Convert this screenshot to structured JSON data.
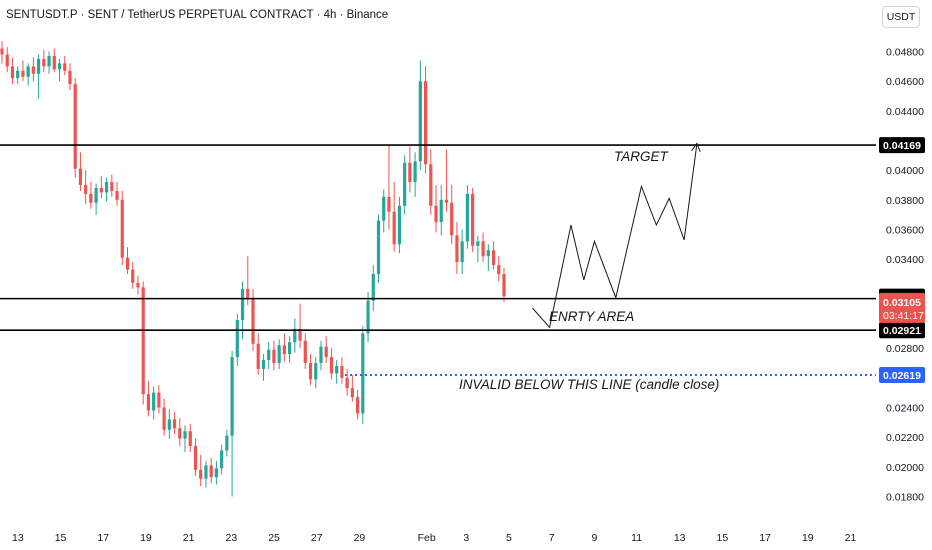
{
  "header": {
    "title": "SENTUSDT.P · SENT / TetherUS PERPETUAL CONTRACT · 4h · Binance",
    "currency_button": "USDT"
  },
  "colors": {
    "up": "#26a69a",
    "down": "#ef5350",
    "level_line": "#000000",
    "invalid_line": "#2962ff",
    "price_label_bg": "#ef5350",
    "invalid_label_bg": "#2962ff",
    "level_label_bg": "#000000"
  },
  "chart_data": {
    "type": "candlestick",
    "grid": false,
    "y_axis": {
      "position": "right",
      "range": [
        0.0172,
        0.0492
      ],
      "ticks": [
        "0.01800",
        "0.02000",
        "0.02200",
        "0.02400",
        "0.02800",
        "0.03400",
        "0.03600",
        "0.03800",
        "0.04000",
        "0.04400",
        "0.04600",
        "0.04800"
      ]
    },
    "x_axis": {
      "tick_labels": [
        "13",
        "15",
        "17",
        "19",
        "21",
        "23",
        "25",
        "27",
        "29",
        "Feb",
        "3",
        "5",
        "7",
        "9",
        "11",
        "13",
        "15",
        "17",
        "19",
        "21"
      ]
    },
    "horizontal_levels": [
      {
        "name": "target",
        "price": 0.04169,
        "label": "0.04169"
      },
      {
        "name": "entry-upper",
        "price": 0.03134,
        "label": "0.03134"
      },
      {
        "name": "entry-lower",
        "price": 0.02921,
        "label": "0.02921"
      },
      {
        "name": "invalid",
        "price": 0.02619,
        "label": "0.02619",
        "style": "dotted"
      }
    ],
    "current_price": {
      "price": 0.03105,
      "label": "0.03105",
      "countdown": "03:41:17"
    },
    "annotations": {
      "target": "TARGET",
      "entry": "ENRTY AREA",
      "invalid": "INVALID BELOW THIS LINE (candle close)"
    },
    "projected_path": [
      {
        "day": 5.1,
        "price": 0.0307
      },
      {
        "day": 5.9,
        "price": 0.0294
      },
      {
        "day": 6.9,
        "price": 0.0363
      },
      {
        "day": 7.5,
        "price": 0.0326
      },
      {
        "day": 8.0,
        "price": 0.0352
      },
      {
        "day": 9.0,
        "price": 0.0314
      },
      {
        "day": 10.2,
        "price": 0.0389
      },
      {
        "day": 10.9,
        "price": 0.0363
      },
      {
        "day": 11.5,
        "price": 0.0381
      },
      {
        "day": 12.2,
        "price": 0.0353
      },
      {
        "day": 12.8,
        "price": 0.0418
      }
    ],
    "candles_ohlc": [
      [
        0.0482,
        0.0487,
        0.0472,
        0.0478
      ],
      [
        0.0478,
        0.0483,
        0.0466,
        0.047
      ],
      [
        0.047,
        0.0476,
        0.0458,
        0.0462
      ],
      [
        0.0462,
        0.047,
        0.0458,
        0.0467
      ],
      [
        0.0467,
        0.0474,
        0.046,
        0.0463
      ],
      [
        0.0463,
        0.0472,
        0.0457,
        0.047
      ],
      [
        0.047,
        0.0476,
        0.046,
        0.0465
      ],
      [
        0.0465,
        0.0478,
        0.0448,
        0.0475
      ],
      [
        0.0475,
        0.0481,
        0.0466,
        0.047
      ],
      [
        0.047,
        0.048,
        0.0465,
        0.0477
      ],
      [
        0.0477,
        0.0482,
        0.0466,
        0.0468
      ],
      [
        0.0468,
        0.0475,
        0.046,
        0.0472
      ],
      [
        0.0472,
        0.0477,
        0.0464,
        0.0467
      ],
      [
        0.0467,
        0.0472,
        0.0454,
        0.0458
      ],
      [
        0.0458,
        0.0462,
        0.0395,
        0.0401
      ],
      [
        0.0401,
        0.0412,
        0.0386,
        0.039
      ],
      [
        0.039,
        0.04,
        0.0377,
        0.0384
      ],
      [
        0.0384,
        0.0392,
        0.0374,
        0.0378
      ],
      [
        0.0378,
        0.0391,
        0.037,
        0.0388
      ],
      [
        0.0388,
        0.0396,
        0.0381,
        0.0385
      ],
      [
        0.0385,
        0.0395,
        0.0379,
        0.0392
      ],
      [
        0.0392,
        0.0397,
        0.0382,
        0.0386
      ],
      [
        0.0386,
        0.0392,
        0.0376,
        0.038
      ],
      [
        0.038,
        0.0386,
        0.0336,
        0.0341
      ],
      [
        0.0341,
        0.0348,
        0.033,
        0.0333
      ],
      [
        0.0333,
        0.0338,
        0.032,
        0.0324
      ],
      [
        0.0324,
        0.0329,
        0.0316,
        0.0321
      ],
      [
        0.0321,
        0.0325,
        0.0242,
        0.0249
      ],
      [
        0.0249,
        0.0258,
        0.0234,
        0.0238
      ],
      [
        0.0238,
        0.0254,
        0.0232,
        0.025
      ],
      [
        0.025,
        0.0255,
        0.0236,
        0.024
      ],
      [
        0.024,
        0.0246,
        0.0221,
        0.0225
      ],
      [
        0.0225,
        0.0239,
        0.0219,
        0.0232
      ],
      [
        0.0232,
        0.0237,
        0.0222,
        0.0226
      ],
      [
        0.0226,
        0.0233,
        0.0214,
        0.0219
      ],
      [
        0.0219,
        0.0228,
        0.021,
        0.0224
      ],
      [
        0.0224,
        0.0229,
        0.021,
        0.0214
      ],
      [
        0.0214,
        0.0219,
        0.0194,
        0.0198
      ],
      [
        0.0198,
        0.0208,
        0.0187,
        0.0192
      ],
      [
        0.0192,
        0.0204,
        0.0186,
        0.0201
      ],
      [
        0.0201,
        0.0206,
        0.0189,
        0.0193
      ],
      [
        0.0193,
        0.0204,
        0.0188,
        0.0199
      ],
      [
        0.0199,
        0.0215,
        0.0195,
        0.0211
      ],
      [
        0.0211,
        0.0225,
        0.0207,
        0.0221
      ],
      [
        0.0221,
        0.0278,
        0.018,
        0.0274
      ],
      [
        0.0274,
        0.0303,
        0.0268,
        0.0299
      ],
      [
        0.0299,
        0.0325,
        0.0286,
        0.032
      ],
      [
        0.032,
        0.0342,
        0.0309,
        0.0314
      ],
      [
        0.0314,
        0.032,
        0.0278,
        0.0283
      ],
      [
        0.0283,
        0.029,
        0.0262,
        0.0266
      ],
      [
        0.0266,
        0.0276,
        0.0258,
        0.0272
      ],
      [
        0.0272,
        0.0284,
        0.0266,
        0.0279
      ],
      [
        0.0279,
        0.0285,
        0.0265,
        0.027
      ],
      [
        0.027,
        0.0286,
        0.0266,
        0.0282
      ],
      [
        0.0282,
        0.029,
        0.0271,
        0.0276
      ],
      [
        0.0276,
        0.0288,
        0.027,
        0.0284
      ],
      [
        0.0284,
        0.03,
        0.0277,
        0.0293
      ],
      [
        0.0293,
        0.031,
        0.028,
        0.0285
      ],
      [
        0.0285,
        0.029,
        0.0266,
        0.027
      ],
      [
        0.027,
        0.0276,
        0.0255,
        0.0259
      ],
      [
        0.0259,
        0.0274,
        0.0253,
        0.027
      ],
      [
        0.027,
        0.0285,
        0.0265,
        0.0281
      ],
      [
        0.0281,
        0.0288,
        0.027,
        0.0274
      ],
      [
        0.0274,
        0.028,
        0.0259,
        0.0263
      ],
      [
        0.0263,
        0.0272,
        0.0256,
        0.0268
      ],
      [
        0.0268,
        0.0274,
        0.0256,
        0.026
      ],
      [
        0.026,
        0.0266,
        0.0248,
        0.0253
      ],
      [
        0.0253,
        0.0262,
        0.0244,
        0.0247
      ],
      [
        0.0247,
        0.0252,
        0.0232,
        0.0236
      ],
      [
        0.0236,
        0.0295,
        0.0229,
        0.029
      ],
      [
        0.029,
        0.0318,
        0.0284,
        0.0312
      ],
      [
        0.0312,
        0.0336,
        0.0305,
        0.033
      ],
      [
        0.033,
        0.037,
        0.0324,
        0.0366
      ],
      [
        0.0366,
        0.0387,
        0.0358,
        0.0382
      ],
      [
        0.0382,
        0.0417,
        0.036,
        0.0372
      ],
      [
        0.0372,
        0.0392,
        0.0345,
        0.035
      ],
      [
        0.035,
        0.0382,
        0.0344,
        0.0376
      ],
      [
        0.0376,
        0.041,
        0.037,
        0.0405
      ],
      [
        0.0405,
        0.0416,
        0.0385,
        0.0392
      ],
      [
        0.0392,
        0.0412,
        0.0382,
        0.0406
      ],
      [
        0.0406,
        0.0474,
        0.04,
        0.046
      ],
      [
        0.046,
        0.047,
        0.0398,
        0.0404
      ],
      [
        0.0404,
        0.0414,
        0.037,
        0.0376
      ],
      [
        0.0376,
        0.039,
        0.0358,
        0.0365
      ],
      [
        0.0365,
        0.039,
        0.0356,
        0.038
      ],
      [
        0.038,
        0.0414,
        0.0372,
        0.0378
      ],
      [
        0.0378,
        0.039,
        0.035,
        0.0356
      ],
      [
        0.0356,
        0.0365,
        0.033,
        0.0338
      ],
      [
        0.0338,
        0.036,
        0.033,
        0.0352
      ],
      [
        0.0352,
        0.039,
        0.0347,
        0.0384
      ],
      [
        0.0384,
        0.0388,
        0.0345,
        0.0349
      ],
      [
        0.0349,
        0.0356,
        0.0338,
        0.0352
      ],
      [
        0.0352,
        0.0358,
        0.0338,
        0.0342
      ],
      [
        0.0342,
        0.035,
        0.0332,
        0.0346
      ],
      [
        0.0346,
        0.0352,
        0.0333,
        0.0336
      ],
      [
        0.0336,
        0.0342,
        0.0325,
        0.033
      ],
      [
        0.033,
        0.0334,
        0.0311,
        0.0315
      ]
    ]
  }
}
